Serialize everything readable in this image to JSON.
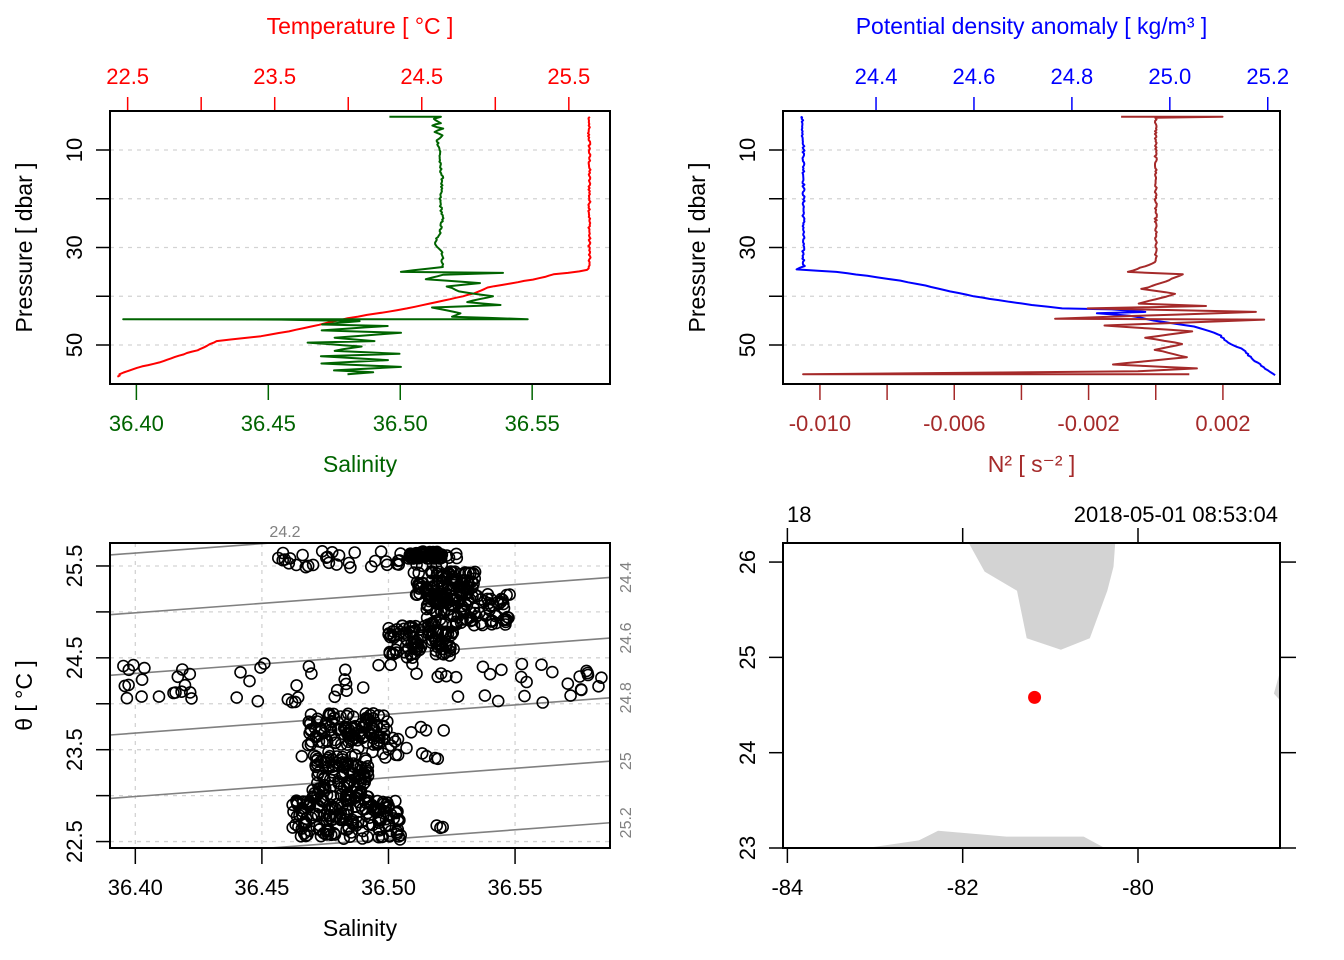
{
  "colors": {
    "temperature": "#ff0000",
    "salinity": "#006400",
    "density": "#0000ff",
    "n2": "#a52a2a",
    "grid": "#d3d3d3",
    "isopycnal": "#808080",
    "land": "#d3d3d3",
    "station": "#ff0000",
    "axis": "#000000"
  },
  "chart_data": [
    {
      "id": "profile-ts",
      "type": "line",
      "title": "",
      "top_axis_label": "Temperature [ °C ]",
      "bottom_axis_label": "Salinity",
      "ylabel": "Pressure [ dbar ]",
      "ylim": [
        58,
        2
      ],
      "y_ticks": [
        10,
        20,
        30,
        40,
        50
      ],
      "y_tick_labels": [
        "10",
        "",
        "30",
        "",
        "50"
      ],
      "top_xlim": [
        22.38,
        25.78
      ],
      "top_ticks": [
        22.5,
        23.0,
        23.5,
        24.0,
        24.5,
        25.0,
        25.5
      ],
      "top_tick_labels": [
        "22.5",
        "",
        "23.5",
        "",
        "24.5",
        "",
        "25.5"
      ],
      "bottom_xlim": [
        36.39,
        36.5795
      ],
      "bottom_ticks": [
        36.4,
        36.45,
        36.5,
        36.55
      ],
      "bottom_tick_labels": [
        "36.40",
        "36.45",
        "36.50",
        "36.55"
      ],
      "grid": true,
      "series": [
        {
          "name": "Temperature",
          "axis": "top",
          "points": [
            [
              25.64,
              3.2
            ],
            [
              25.63,
              4
            ],
            [
              25.64,
              5
            ],
            [
              25.63,
              6
            ],
            [
              25.64,
              8
            ],
            [
              25.64,
              10
            ],
            [
              25.64,
              15
            ],
            [
              25.64,
              20
            ],
            [
              25.64,
              25
            ],
            [
              25.64,
              30
            ],
            [
              25.64,
              33
            ],
            [
              25.63,
              34.6
            ],
            [
              25.5,
              35.2
            ],
            [
              25.4,
              35.5
            ],
            [
              25.3,
              36.3
            ],
            [
              25.1,
              37.4
            ],
            [
              24.95,
              38.2
            ],
            [
              24.85,
              39.4
            ],
            [
              24.7,
              40.6
            ],
            [
              24.55,
              41.5
            ],
            [
              24.4,
              42.5
            ],
            [
              24.2,
              43.5
            ],
            [
              24.0,
              44.5
            ],
            [
              23.85,
              45.5
            ],
            [
              23.75,
              46.2
            ],
            [
              23.6,
              47.2
            ],
            [
              23.4,
              48.2
            ],
            [
              23.1,
              49.2
            ],
            [
              23.0,
              50.8
            ],
            [
              22.85,
              52.2
            ],
            [
              22.75,
              53.3
            ],
            [
              22.6,
              54.4
            ],
            [
              22.5,
              55.3
            ],
            [
              22.45,
              56.0
            ],
            [
              22.43,
              56.5
            ]
          ]
        },
        {
          "name": "Salinity",
          "axis": "bottom",
          "points": [
            [
              36.496,
              3.2
            ],
            [
              36.515,
              3.2
            ],
            [
              36.513,
              3.6
            ],
            [
              36.515,
              4.5
            ],
            [
              36.512,
              5
            ],
            [
              36.516,
              5.6
            ],
            [
              36.513,
              6.3
            ],
            [
              36.516,
              7
            ],
            [
              36.514,
              8
            ],
            [
              36.515,
              10
            ],
            [
              36.515,
              13
            ],
            [
              36.516,
              16
            ],
            [
              36.515,
              20
            ],
            [
              36.516,
              24
            ],
            [
              36.515,
              27
            ],
            [
              36.513,
              29
            ],
            [
              36.516,
              31
            ],
            [
              36.516,
              34
            ],
            [
              36.5,
              35
            ],
            [
              36.539,
              35.2
            ],
            [
              36.516,
              35.6
            ],
            [
              36.51,
              36.5
            ],
            [
              36.53,
              37.3
            ],
            [
              36.518,
              38
            ],
            [
              36.522,
              39
            ],
            [
              36.535,
              40
            ],
            [
              36.525,
              41.2
            ],
            [
              36.538,
              41.8
            ],
            [
              36.512,
              42.3
            ],
            [
              36.523,
              43.5
            ],
            [
              36.52,
              44.2
            ],
            [
              36.548,
              44.7
            ],
            [
              36.395,
              44.7
            ],
            [
              36.455,
              44.8
            ],
            [
              36.485,
              45.1
            ],
            [
              36.47,
              45.8
            ],
            [
              36.495,
              46.1
            ],
            [
              36.47,
              47.0
            ],
            [
              36.5,
              47.5
            ],
            [
              36.475,
              48.5
            ],
            [
              36.49,
              49.2
            ],
            [
              36.465,
              49.5
            ],
            [
              36.485,
              50.3
            ],
            [
              36.475,
              51.2
            ],
            [
              36.5,
              51.8
            ],
            [
              36.47,
              52.3
            ],
            [
              36.495,
              53.1
            ],
            [
              36.47,
              53.8
            ],
            [
              36.5,
              54.5
            ],
            [
              36.475,
              55.2
            ],
            [
              36.49,
              55.6
            ],
            [
              36.48,
              56.0
            ]
          ]
        }
      ]
    },
    {
      "id": "profile-density-n2",
      "type": "line",
      "top_axis_label": "Potential density anomaly [ kg/m³ ]",
      "bottom_axis_label": "N² [ s⁻² ]",
      "ylabel": "Pressure [ dbar ]",
      "ylim": [
        58,
        2
      ],
      "y_ticks": [
        10,
        20,
        30,
        40,
        50
      ],
      "y_tick_labels": [
        "10",
        "",
        "30",
        "",
        "50"
      ],
      "top_xlim": [
        24.21,
        25.225
      ],
      "top_ticks": [
        24.4,
        24.6,
        24.8,
        25.0,
        25.2
      ],
      "top_tick_labels": [
        "24.4",
        "24.6",
        "24.8",
        "25.0",
        "25.2"
      ],
      "bottom_xlim": [
        -0.0111,
        0.0037
      ],
      "bottom_ticks": [
        -0.01,
        -0.008,
        -0.006,
        -0.004,
        -0.002,
        0.0,
        0.002
      ],
      "bottom_tick_labels": [
        "-0.010",
        "",
        "-0.006",
        "",
        "-0.002",
        "",
        "0.002"
      ],
      "grid": true,
      "series": [
        {
          "name": "Potential density anomaly",
          "axis": "top",
          "points": [
            [
              24.245,
              3.2
            ],
            [
              24.251,
              3.3
            ],
            [
              24.248,
              4.5
            ],
            [
              24.251,
              5.5
            ],
            [
              24.249,
              6.5
            ],
            [
              24.252,
              8
            ],
            [
              24.252,
              15
            ],
            [
              24.252,
              25
            ],
            [
              24.251,
              32
            ],
            [
              24.253,
              33.8
            ],
            [
              24.24,
              34.5
            ],
            [
              24.32,
              35.0
            ],
            [
              24.38,
              35.8
            ],
            [
              24.45,
              36.8
            ],
            [
              24.5,
              37.8
            ],
            [
              24.55,
              39.0
            ],
            [
              24.6,
              40.0
            ],
            [
              24.65,
              40.8
            ],
            [
              24.72,
              41.8
            ],
            [
              24.78,
              42.5
            ],
            [
              24.88,
              42.7
            ],
            [
              24.95,
              43.2
            ],
            [
              24.85,
              43.5
            ],
            [
              24.92,
              44.0
            ],
            [
              24.97,
              45.0
            ],
            [
              25.05,
              46.2
            ],
            [
              25.1,
              47.8
            ],
            [
              25.12,
              49.5
            ],
            [
              25.15,
              51
            ],
            [
              25.17,
              53
            ],
            [
              25.2,
              55.2
            ],
            [
              25.215,
              56.2
            ]
          ]
        },
        {
          "name": "N2",
          "axis": "bottom",
          "points": [
            [
              -0.001,
              3.2
            ],
            [
              0.002,
              3.2
            ],
            [
              0.0,
              3.4
            ],
            [
              0.0,
              5
            ],
            [
              0.0,
              7
            ],
            [
              0.0,
              15
            ],
            [
              0.0,
              25
            ],
            [
              0.0,
              33
            ],
            [
              -0.0008,
              35
            ],
            [
              0.0008,
              35.5
            ],
            [
              0.0003,
              37
            ],
            [
              -0.0004,
              38.5
            ],
            [
              0.0006,
              39.5
            ],
            [
              -0.0005,
              41.5
            ],
            [
              0.0015,
              42
            ],
            [
              -0.002,
              42.5
            ],
            [
              0.003,
              43.2
            ],
            [
              -0.003,
              44.6
            ],
            [
              0.0032,
              44.8
            ],
            [
              -0.0015,
              46
            ],
            [
              0.0011,
              47.2
            ],
            [
              -0.0003,
              48.5
            ],
            [
              0.0008,
              49.8
            ],
            [
              0.0,
              51
            ],
            [
              0.0009,
              52.5
            ],
            [
              -0.0013,
              54
            ],
            [
              0.0012,
              54.8
            ],
            [
              -0.0005,
              55.4
            ],
            [
              -0.0105,
              56.0
            ],
            [
              0.001,
              56.0
            ]
          ]
        }
      ]
    },
    {
      "id": "ts-diagram",
      "type": "scatter",
      "xlabel": "Salinity",
      "ylabel": "θ [ °C ]",
      "xlim": [
        36.39,
        36.5875
      ],
      "ylim": [
        22.43,
        25.75
      ],
      "x_ticks": [
        36.4,
        36.45,
        36.5,
        36.55
      ],
      "x_tick_labels": [
        "36.40",
        "36.45",
        "36.50",
        "36.55"
      ],
      "y_ticks": [
        22.5,
        23.0,
        23.5,
        24.0,
        24.5,
        25.0,
        25.5
      ],
      "y_tick_labels": [
        "22.5",
        "",
        "23.5",
        "",
        "24.5",
        "",
        "25.5"
      ],
      "grid": true,
      "isopycnals": [
        24.2,
        24.4,
        24.6,
        24.8,
        25.0,
        25.2
      ],
      "isopycnal_labels": [
        "24.2",
        "24.4",
        "24.6",
        "24.8",
        "25",
        "25.2"
      ],
      "clusters": [
        {
          "s": [
            36.508,
            36.522
          ],
          "t": [
            25.58,
            25.66
          ],
          "n": 60
        },
        {
          "s": [
            36.455,
            36.53
          ],
          "t": [
            25.48,
            25.66
          ],
          "n": 45
        },
        {
          "s": [
            36.51,
            36.535
          ],
          "t": [
            25.12,
            25.45
          ],
          "n": 110
        },
        {
          "s": [
            36.515,
            36.548
          ],
          "t": [
            24.85,
            25.2
          ],
          "n": 110
        },
        {
          "s": [
            36.5,
            36.528
          ],
          "t": [
            24.5,
            24.85
          ],
          "n": 100
        },
        {
          "s": [
            36.395,
            36.585
          ],
          "t": [
            24.0,
            24.45
          ],
          "n": 70
        },
        {
          "s": [
            36.468,
            36.5
          ],
          "t": [
            23.55,
            23.9
          ],
          "n": 110
        },
        {
          "s": [
            36.46,
            36.522
          ],
          "t": [
            23.4,
            23.75
          ],
          "n": 30
        },
        {
          "s": [
            36.47,
            36.492
          ],
          "t": [
            22.95,
            23.45
          ],
          "n": 120
        },
        {
          "s": [
            36.462,
            36.505
          ],
          "t": [
            22.52,
            22.95
          ],
          "n": 160
        },
        {
          "s": [
            36.518,
            36.522
          ],
          "t": [
            22.62,
            22.68
          ],
          "n": 3
        }
      ]
    },
    {
      "id": "station-map",
      "type": "scatter",
      "top_labels": [
        "18",
        "2018-05-01 08:53:04"
      ],
      "xlim": [
        -84.05,
        -78.38
      ],
      "ylim": [
        23.0,
        26.2
      ],
      "x_ticks": [
        -84,
        -82,
        -80
      ],
      "x_tick_labels": [
        "-84",
        "-82",
        "-80"
      ],
      "y_ticks": [
        23,
        24,
        25,
        26
      ],
      "y_tick_labels": [
        "23",
        "24",
        "25",
        "26"
      ],
      "station": {
        "lon": -81.18,
        "lat": 24.58
      },
      "land": [
        {
          "name": "florida",
          "points": [
            [
              -81.93,
              26.2
            ],
            [
              -81.75,
              25.9
            ],
            [
              -81.38,
              25.7
            ],
            [
              -81.27,
              25.2
            ],
            [
              -80.88,
              25.08
            ],
            [
              -80.55,
              25.2
            ],
            [
              -80.35,
              25.7
            ],
            [
              -80.28,
              25.95
            ],
            [
              -80.26,
              26.2
            ]
          ]
        },
        {
          "name": "cuba",
          "points": [
            [
              -83.1,
              23.0
            ],
            [
              -82.5,
              23.08
            ],
            [
              -82.28,
              23.18
            ],
            [
              -81.5,
              23.12
            ],
            [
              -80.62,
              23.12
            ],
            [
              -80.38,
              23.0
            ]
          ]
        },
        {
          "name": "bahamas",
          "points": [
            [
              -78.38,
              24.85
            ],
            [
              -78.45,
              24.62
            ],
            [
              -78.38,
              24.55
            ]
          ]
        }
      ]
    }
  ]
}
